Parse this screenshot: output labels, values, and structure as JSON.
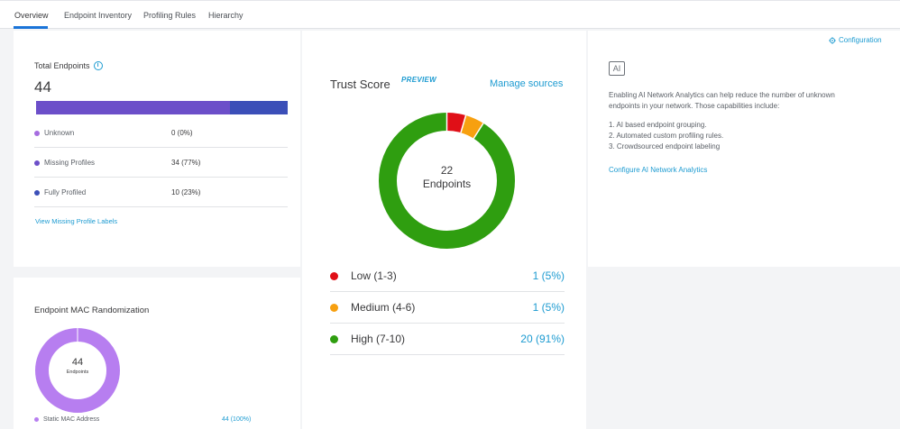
{
  "tabs": [
    {
      "label": "Overview"
    },
    {
      "label": "Endpoint Inventory"
    },
    {
      "label": "Profiling Rules"
    },
    {
      "label": "Hierarchy"
    }
  ],
  "configuration": {
    "label": "Configuration",
    "icon": "gear-icon"
  },
  "total_endpoints": {
    "title": "Total Endpoints",
    "count": "44",
    "bar_segments": [
      {
        "name": "Unknown",
        "fraction": 0.0,
        "color": "#a66ce0"
      },
      {
        "name": "Missing Profiles",
        "fraction": 0.77,
        "color": "#6c4fc9"
      },
      {
        "name": "Fully Profiled",
        "fraction": 0.23,
        "color": "#3b4fb8"
      }
    ],
    "legend": [
      {
        "label": "Unknown",
        "value": "0 (0%)",
        "color": "#a66ce0"
      },
      {
        "label": "Missing Profiles",
        "value": "34 (77%)",
        "color": "#6c4fc9"
      },
      {
        "label": "Fully Profiled",
        "value": "10 (23%)",
        "color": "#3b4fb8"
      }
    ],
    "link": "View Missing Profile Labels"
  },
  "mac_randomization": {
    "title": "Endpoint MAC Randomization",
    "center_count": "44",
    "center_label": "Endpoints",
    "donut_color": "#b77ef0",
    "legend_label": "Static MAC Address",
    "legend_value": "44 (100%)"
  },
  "trust_score": {
    "title": "Trust Score",
    "preview": "PREVIEW",
    "manage_sources": "Manage sources",
    "center_count": "22",
    "center_label": "Endpoints",
    "segments": [
      {
        "label": "Low (1-3)",
        "value": "1 (5%)",
        "fraction": 0.045,
        "color": "#e00f17"
      },
      {
        "label": "Medium (4-6)",
        "value": "1 (5%)",
        "fraction": 0.045,
        "color": "#f7a010"
      },
      {
        "label": "High (7-10)",
        "value": "20 (91%)",
        "fraction": 0.91,
        "color": "#2f9e10"
      }
    ]
  },
  "ai_analytics": {
    "badge": "AI",
    "description_line1": "Enabling AI Network Analytics can help reduce the number of unknown",
    "description_line2": "endpoints in your network. Those capabilities include:",
    "items": [
      "1. AI based endpoint grouping.",
      "2. Automated custom profiling rules.",
      "3. Crowdsourced endpoint labeling"
    ],
    "link": "Configure AI Network Analytics"
  }
}
